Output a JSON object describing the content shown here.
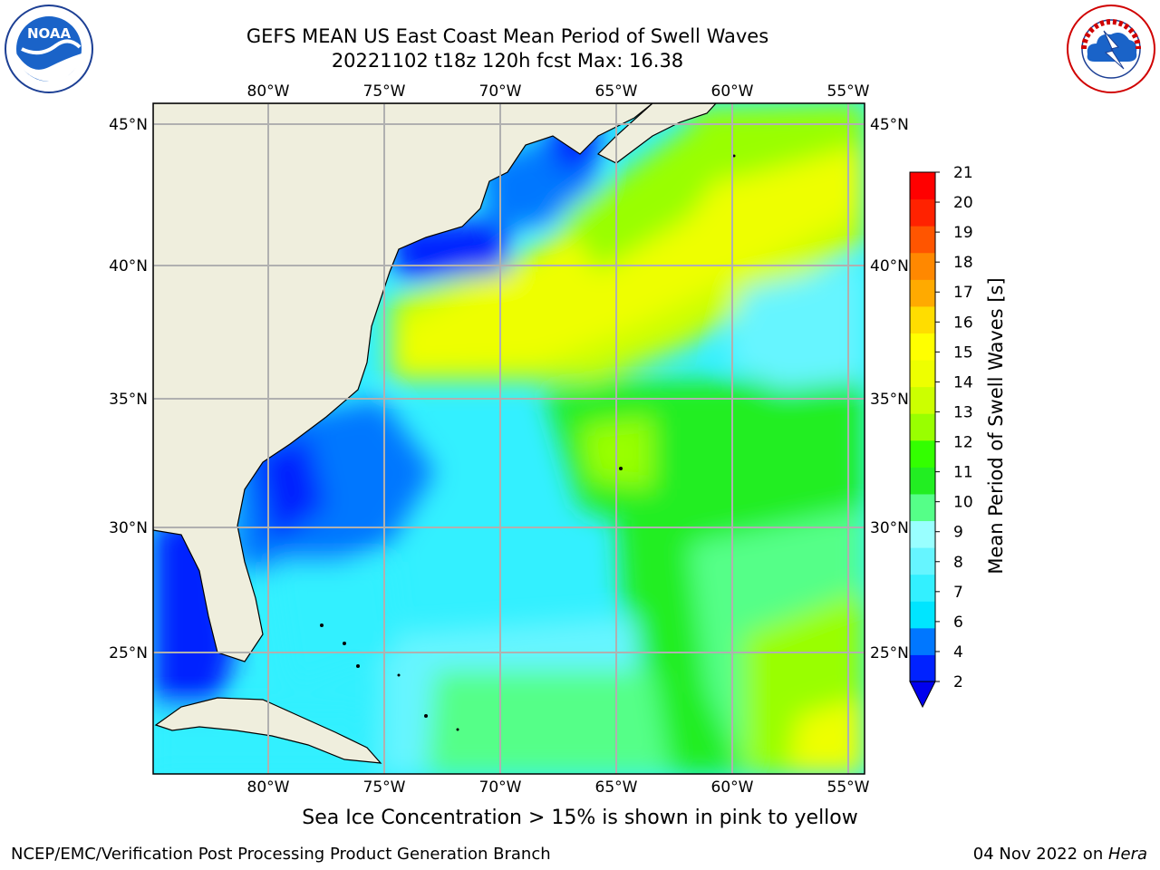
{
  "header": {
    "title_line1": "GEFS MEAN US East Coast Mean Period of Swell Waves",
    "title_line2": "20221102 t18z 120h fcst   Max: 16.38"
  },
  "logos": {
    "left": "noaa-logo",
    "right": "national-weather-service-logo",
    "left_text": "NOAA",
    "right_text": "NATIONAL WEATHER SERVICE"
  },
  "map": {
    "lon_labels": [
      "80°W",
      "75°W",
      "70°W",
      "65°W",
      "60°W",
      "55°W"
    ],
    "lat_labels": [
      "45°N",
      "40°N",
      "35°N",
      "30°N",
      "25°N"
    ],
    "land_color": "#efeedd",
    "grid_color": "#b0b0b0"
  },
  "colorbar": {
    "label": "Mean Period of Swell Waves [s]",
    "ticks": [
      "2",
      "4",
      "6",
      "7",
      "8",
      "9",
      "10",
      "11",
      "12",
      "13",
      "14",
      "15",
      "16",
      "17",
      "18",
      "19",
      "20",
      "21"
    ],
    "colors": [
      "#0022ff",
      "#0077ff",
      "#00e5ff",
      "#33f0ff",
      "#66f5ff",
      "#99ffff",
      "#55ff88",
      "#22ee22",
      "#33ff00",
      "#99ff00",
      "#ccff00",
      "#eeff00",
      "#ffff00",
      "#ffdd00",
      "#ffaa00",
      "#ff8800",
      "#ff5500",
      "#ff2200",
      "#ff0000"
    ],
    "extend_color": "#0000ee"
  },
  "notes": {
    "ice": "Sea Ice Concentration > 15% is shown in pink to yellow"
  },
  "footer": {
    "left": "NCEP/EMC/Verification Post Processing Product Generation Branch",
    "right_prefix": "04 Nov 2022 on ",
    "right_host": "Hera"
  }
}
